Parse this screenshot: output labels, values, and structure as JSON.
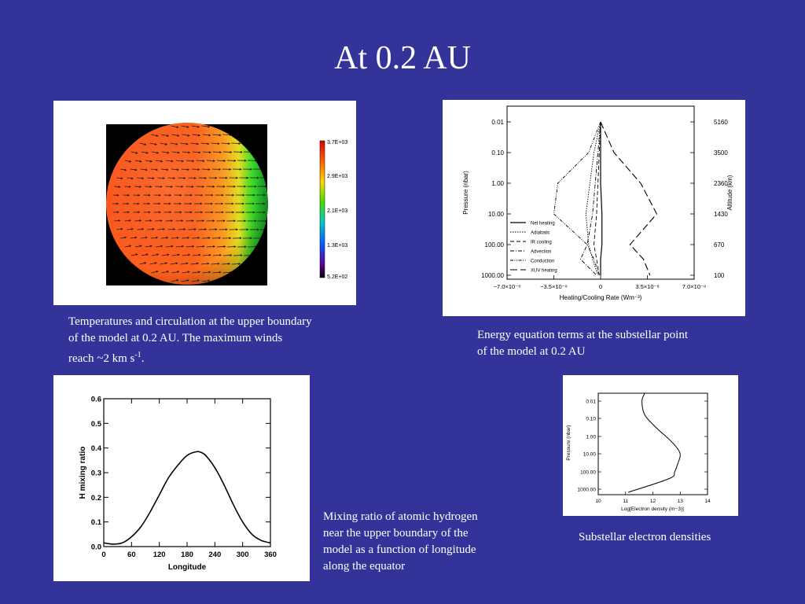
{
  "slide": {
    "title": "At 0.2 AU"
  },
  "captions": {
    "temperature_line1": "Temperatures and circulation at the upper boundary",
    "temperature_line2": "of the model at 0.2 AU.  The maximum winds",
    "temperature_line3_pre": "reach ~2 km s",
    "temperature_line3_sup": "-1",
    "temperature_line3_post": ".",
    "energy_line1": "Energy equation terms at the substellar point",
    "energy_line2": "of the model at 0.2 AU",
    "mixing_line1": "Mixing ratio of atomic hydrogen",
    "mixing_line2": "near the upper boundary of the",
    "mixing_line3": "model as a function of longitude",
    "mixing_line4": "along the equator",
    "electron": "Substellar electron densities"
  },
  "colors": {
    "background": "#333399",
    "caption_text": "#ffffff"
  },
  "chart_data": [
    {
      "type": "heatmap",
      "title": "",
      "colorbar_ticks": [
        "3.7E+03",
        "2.9E+03",
        "2.1E+03",
        "1.3E+03",
        "5.2E+02"
      ],
      "colorbar_range": [
        520,
        3700
      ]
    },
    {
      "type": "line",
      "title": "",
      "xlabel": "Heating/Cooling Rate (Wm⁻³)",
      "ylabel": "Pressure (nbar)",
      "ylabel_right": "Altitude (km)",
      "x_ticks": [
        "−7.0×10⁻⁸",
        "−3.5×10⁻⁸",
        "0",
        "3.5×10⁻⁸",
        "7.0×10⁻⁸"
      ],
      "y_ticks": [
        "0.01",
        "0.10",
        "1.00",
        "10.00",
        "100.00",
        "1000.00"
      ],
      "y_ticks_right": [
        "5160",
        "3500",
        "2360",
        "1430",
        "670",
        "100"
      ],
      "y_scale": "log, inverted",
      "xlim": [
        -7e-08,
        7e-08
      ],
      "ylim": [
        1000,
        0.01
      ],
      "legend_placement": "bottom-left",
      "series": [
        {
          "name": "Net heating",
          "x": [
            0,
            0,
            0,
            1e-09,
            1e-09,
            0,
            0
          ],
          "y": [
            0.01,
            0.1,
            1,
            10,
            100,
            300,
            1000
          ]
        },
        {
          "name": "Adiabatic",
          "x": [
            0,
            -5e-09,
            -8e-09,
            -1.1e-08,
            -9e-09,
            -6e-09,
            -2e-09
          ],
          "y": [
            0.01,
            0.1,
            1,
            10,
            100,
            300,
            1000
          ]
        },
        {
          "name": "IR cooling",
          "x": [
            0,
            -1e-09,
            -2e-09,
            -3e-09,
            -5e-09,
            -3e-09,
            -1e-09
          ],
          "y": [
            0.01,
            0.1,
            1,
            10,
            100,
            300,
            1000
          ]
        },
        {
          "name": "Advection",
          "x": [
            0,
            -2e-09,
            -4e-09,
            -6e-09,
            -1e-08,
            -1.5e-08,
            -3e-09
          ],
          "y": [
            0.01,
            0.1,
            1,
            10,
            100,
            300,
            1000
          ]
        },
        {
          "name": "Conduction",
          "x": [
            0,
            -9e-09,
            -3.2e-08,
            -3.5e-08,
            -1e-08,
            -5e-09,
            -1e-09
          ],
          "y": [
            0.01,
            0.1,
            1,
            10,
            100,
            300,
            1000
          ]
        },
        {
          "name": "XUV heating",
          "x": [
            0,
            1e-08,
            3e-08,
            4.2e-08,
            2.2e-08,
            3.2e-08,
            3.7e-08
          ],
          "y": [
            0.01,
            0.1,
            1,
            10,
            100,
            300,
            1000
          ]
        }
      ]
    },
    {
      "type": "line",
      "title": "",
      "xlabel": "Longitude",
      "ylabel": "H mixing ratio",
      "x_ticks": [
        "0",
        "60",
        "120",
        "180",
        "240",
        "300",
        "360"
      ],
      "y_ticks": [
        "0.0",
        "0.1",
        "0.2",
        "0.3",
        "0.4",
        "0.5",
        "0.6"
      ],
      "xlim": [
        0,
        360
      ],
      "ylim": [
        0,
        0.6
      ],
      "series": [
        {
          "x": [
            0,
            20,
            40,
            60,
            80,
            100,
            120,
            140,
            160,
            180,
            200,
            210,
            220,
            240,
            260,
            280,
            300,
            320,
            340,
            360
          ],
          "y": [
            0.015,
            0.01,
            0.015,
            0.04,
            0.08,
            0.14,
            0.21,
            0.28,
            0.33,
            0.37,
            0.385,
            0.382,
            0.37,
            0.32,
            0.25,
            0.17,
            0.1,
            0.05,
            0.025,
            0.015
          ]
        }
      ]
    },
    {
      "type": "line",
      "title": "",
      "xlabel": "Log[Electron density (m−3)]",
      "ylabel": "Pressure (nbar)",
      "x_ticks": [
        "10",
        "11",
        "12",
        "13",
        "14"
      ],
      "y_ticks": [
        "0.01",
        "0.10",
        "1.00",
        "10.00",
        "100.00",
        "1000.00"
      ],
      "y_scale": "log, inverted",
      "xlim": [
        10,
        14
      ],
      "ylim": [
        1000,
        0.01
      ],
      "series": [
        {
          "x": [
            11.7,
            11.6,
            11.7,
            12.1,
            12.6,
            12.9,
            13.0,
            12.9,
            12.8,
            12.6,
            11.1
          ],
          "y": [
            0.003,
            0.01,
            0.06,
            0.3,
            1.5,
            5,
            12,
            40,
            100,
            250,
            1500
          ]
        }
      ]
    }
  ]
}
